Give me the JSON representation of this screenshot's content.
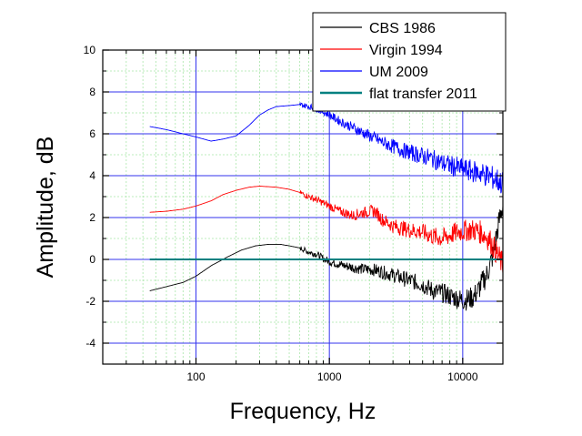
{
  "chart_data": {
    "type": "line",
    "title": "",
    "xlabel": "Frequency, Hz",
    "ylabel": "Amplitude, dB",
    "xscale": "log",
    "xlim": [
      20,
      20000
    ],
    "ylim": [
      -5,
      10
    ],
    "xticks": [
      100,
      1000,
      10000
    ],
    "xtick_labels": [
      "100",
      "1000",
      "10000"
    ],
    "yticks": [
      -4,
      -2,
      0,
      2,
      4,
      6,
      8,
      10
    ],
    "ytick_labels": [
      "-4",
      "-2",
      "0",
      "2",
      "4",
      "6",
      "8",
      "10"
    ],
    "grid": true,
    "legend_position": "top-right",
    "series": [
      {
        "name": "CBS 1986",
        "color": "#000000",
        "x": [
          45,
          60,
          80,
          100,
          130,
          170,
          220,
          280,
          350,
          430,
          500,
          600,
          700,
          800,
          900,
          1000,
          1300,
          1700,
          2200,
          3000,
          4000,
          5000,
          6000,
          7000,
          8000,
          9000,
          10000,
          11000,
          12000,
          13000,
          14000,
          15000,
          16000,
          17000,
          18000,
          19000,
          20000
        ],
        "y": [
          -1.5,
          -1.3,
          -1.1,
          -0.8,
          -0.3,
          0.1,
          0.45,
          0.65,
          0.72,
          0.72,
          0.65,
          0.55,
          0.35,
          0.25,
          0.05,
          -0.1,
          -0.3,
          -0.45,
          -0.5,
          -0.75,
          -1.0,
          -1.2,
          -1.5,
          -1.6,
          -1.75,
          -1.85,
          -1.95,
          -1.9,
          -1.8,
          -1.5,
          -1.1,
          -0.8,
          -0.3,
          0.3,
          1.2,
          2.0,
          2.6
        ]
      },
      {
        "name": "Virgin 1994",
        "color": "#ff0000",
        "x": [
          45,
          60,
          80,
          100,
          130,
          160,
          200,
          250,
          300,
          400,
          500,
          600,
          700,
          800,
          900,
          1000,
          1200,
          1500,
          1700,
          2000,
          2200,
          2500,
          3000,
          4000,
          5000,
          6000,
          7000,
          8000,
          9000,
          10000,
          11000,
          12000,
          13000,
          14000,
          15000,
          16000,
          17000,
          18000,
          19000,
          20000
        ],
        "y": [
          2.25,
          2.3,
          2.4,
          2.55,
          2.8,
          3.1,
          3.3,
          3.45,
          3.5,
          3.45,
          3.35,
          3.2,
          3.0,
          2.85,
          2.7,
          2.55,
          2.3,
          2.1,
          2.2,
          2.3,
          2.3,
          1.9,
          1.6,
          1.4,
          1.3,
          1.1,
          1.0,
          1.15,
          1.3,
          1.35,
          1.4,
          1.4,
          1.35,
          1.25,
          1.1,
          0.9,
          0.6,
          0.3,
          0.0,
          -0.3
        ]
      },
      {
        "name": "UM 2009",
        "color": "#0000ff",
        "x": [
          45,
          60,
          80,
          100,
          130,
          160,
          200,
          250,
          300,
          350,
          400,
          500,
          600,
          700,
          800,
          900,
          1000,
          1200,
          1500,
          2000,
          2500,
          3000,
          4000,
          5000,
          6000,
          7000,
          8000,
          9000,
          10000,
          12000,
          14000,
          16000,
          18000,
          20000
        ],
        "y": [
          6.35,
          6.2,
          6.0,
          5.85,
          5.65,
          5.75,
          5.9,
          6.4,
          6.9,
          7.15,
          7.3,
          7.35,
          7.4,
          7.3,
          7.2,
          7.05,
          6.9,
          6.6,
          6.3,
          5.9,
          5.6,
          5.4,
          5.1,
          4.95,
          4.8,
          4.6,
          4.5,
          4.4,
          4.3,
          4.2,
          4.1,
          3.95,
          3.8,
          3.6
        ]
      },
      {
        "name": "flat transfer 2011",
        "color": "#008080",
        "x": [
          45,
          20000
        ],
        "y": [
          0,
          0
        ]
      }
    ]
  }
}
